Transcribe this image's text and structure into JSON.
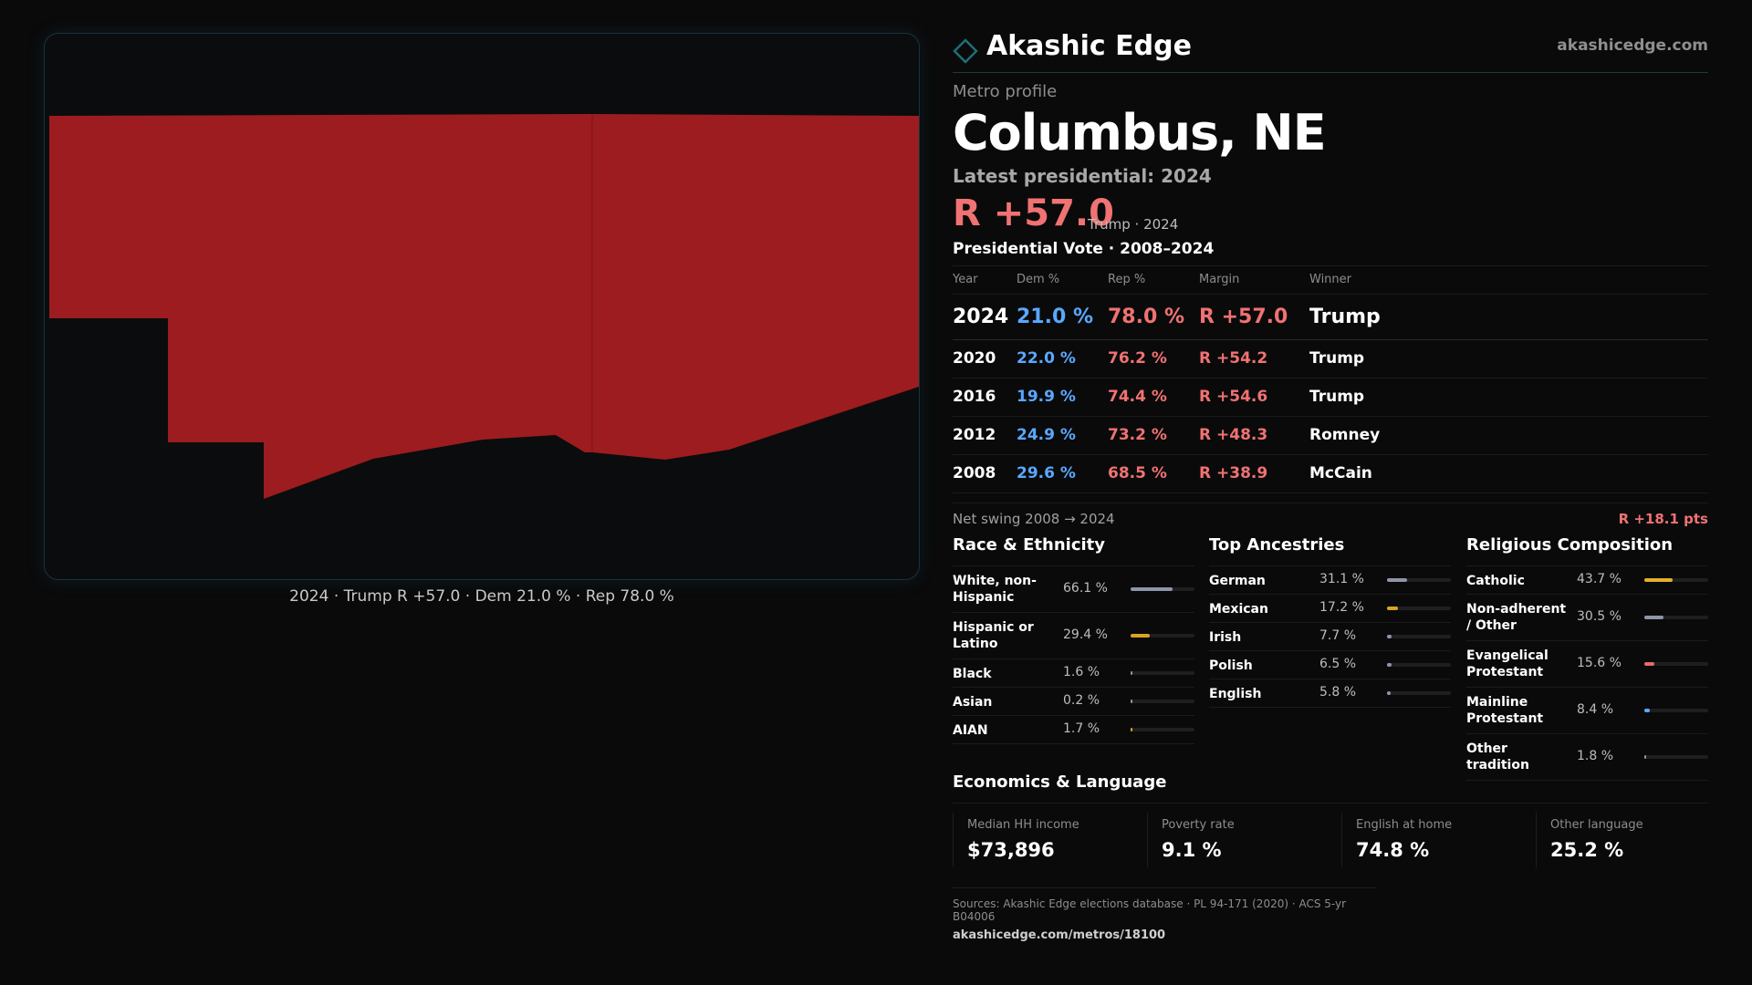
{
  "brand": {
    "name": "Akashic Edge",
    "url": "akashicedge.com",
    "accent": "#1f6e78",
    "logo_icon": "diamond-outline-icon"
  },
  "profile": {
    "eyebrow": "Metro profile",
    "name": "Columbus, NE",
    "latest_label": "Latest presidential: 2024",
    "headline_margin": "R +57.0",
    "headline_sub": "Trump · 2024"
  },
  "map": {
    "fill": "#9c1c20",
    "caption": "2024 · Trump  R +57.0 · Dem 21.0 % · Rep 78.0 %"
  },
  "votes": {
    "title": "Presidential Vote · 2008–2024",
    "columns": [
      "Year",
      "Dem %",
      "Rep %",
      "Margin",
      "Winner"
    ],
    "rows": [
      {
        "year": "2024",
        "dem": "21.0 %",
        "rep": "78.0 %",
        "margin": "R +57.0",
        "winner": "Trump"
      },
      {
        "year": "2020",
        "dem": "22.0 %",
        "rep": "76.2 %",
        "margin": "R +54.2",
        "winner": "Trump"
      },
      {
        "year": "2016",
        "dem": "19.9 %",
        "rep": "74.4 %",
        "margin": "R +54.6",
        "winner": "Trump"
      },
      {
        "year": "2012",
        "dem": "24.9 %",
        "rep": "73.2 %",
        "margin": "R +48.3",
        "winner": "Romney"
      },
      {
        "year": "2008",
        "dem": "29.6 %",
        "rep": "68.5 %",
        "margin": "R +38.9",
        "winner": "McCain"
      }
    ],
    "dem_color": "#5aa8ff",
    "rep_color": "#f07272"
  },
  "swing": {
    "label": "Net swing 2008 → 2024",
    "value": "R +18.1 pts"
  },
  "race": {
    "title": "Race & Ethnicity",
    "items": [
      {
        "label": "White, non-Hispanic",
        "pct": "66.1 %",
        "value": 66.1,
        "color": "#8d96a8"
      },
      {
        "label": "Hispanic or Latino",
        "pct": "29.4 %",
        "value": 29.4,
        "color": "#d9a520"
      },
      {
        "label": "Black",
        "pct": "1.6 %",
        "value": 1.6,
        "color": "#8d96a8"
      },
      {
        "label": "Asian",
        "pct": "0.2 %",
        "value": 0.2,
        "color": "#8d96a8"
      },
      {
        "label": "AIAN",
        "pct": "1.7 %",
        "value": 1.7,
        "color": "#d9a520"
      }
    ]
  },
  "ancestry": {
    "title": "Top Ancestries",
    "items": [
      {
        "label": "German",
        "pct": "31.1 %",
        "value": 31.1,
        "color": "#8d96a8"
      },
      {
        "label": "Mexican",
        "pct": "17.2 %",
        "value": 17.2,
        "color": "#d9a520"
      },
      {
        "label": "Irish",
        "pct": "7.7 %",
        "value": 7.7,
        "color": "#8d96a8"
      },
      {
        "label": "Polish",
        "pct": "6.5 %",
        "value": 6.5,
        "color": "#8d96a8"
      },
      {
        "label": "English",
        "pct": "5.8 %",
        "value": 5.8,
        "color": "#8d96a8"
      }
    ]
  },
  "religion": {
    "title": "Religious Composition",
    "items": [
      {
        "label": "Catholic",
        "pct": "43.7 %",
        "value": 43.7,
        "color": "#e3b02a"
      },
      {
        "label": "Non-adherent / Other",
        "pct": "30.5 %",
        "value": 30.5,
        "color": "#8d96a8"
      },
      {
        "label": "Evangelical Protestant",
        "pct": "15.6 %",
        "value": 15.6,
        "color": "#e86a6a"
      },
      {
        "label": "Mainline Protestant",
        "pct": "8.4 %",
        "value": 8.4,
        "color": "#5aa8ff"
      },
      {
        "label": "Other tradition",
        "pct": "1.8 %",
        "value": 1.8,
        "color": "#8d96a8"
      }
    ]
  },
  "economics": {
    "title": "Economics & Language",
    "cells": [
      {
        "label": "Median HH income",
        "value": "$73,896"
      },
      {
        "label": "Poverty rate",
        "value": "9.1 %"
      },
      {
        "label": "English at home",
        "value": "74.8 %"
      },
      {
        "label": "Other language",
        "value": "25.2 %"
      }
    ]
  },
  "footer": {
    "sources": "Sources: Akashic Edge elections database · PL 94-171 (2020) · ACS 5-yr B04006",
    "url": "akashicedge.com/metros/18100"
  }
}
